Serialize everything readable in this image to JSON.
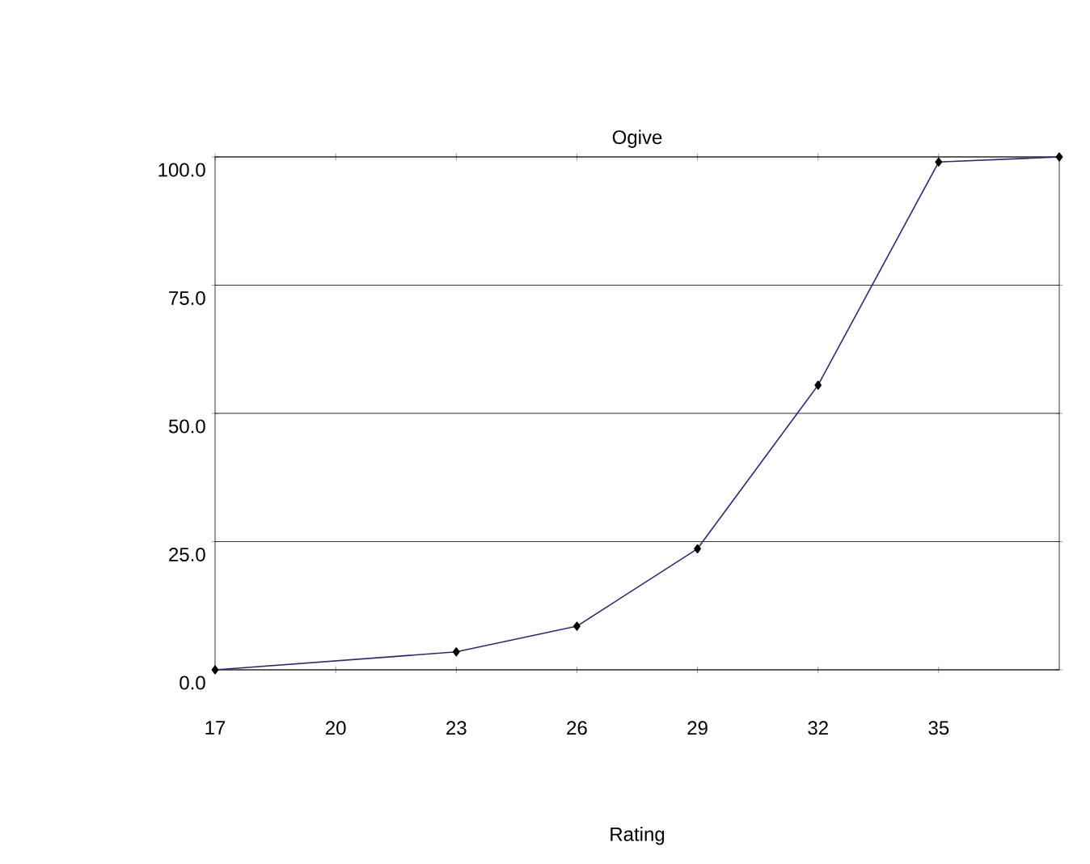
{
  "chart_data": {
    "type": "line",
    "title": "Ogive",
    "xlabel": "Rating",
    "x": [
      17,
      23,
      26,
      29,
      32,
      35,
      38
    ],
    "values": [
      0,
      3.5,
      8.5,
      23.6,
      55.5,
      99,
      100
    ],
    "color": "#2b2b6b",
    "marker": "diamond",
    "line_style": "solid",
    "grid": "y",
    "xlim": [
      17,
      38
    ],
    "xticks": [
      17,
      20,
      23,
      26,
      29,
      32,
      35
    ],
    "ylim": [
      0,
      100
    ],
    "yticks": [
      {
        "value": 0,
        "label": "0.0"
      },
      {
        "value": 25,
        "label": "25.0"
      },
      {
        "value": 50,
        "label": "50.0"
      },
      {
        "value": 75,
        "label": "75.0"
      },
      {
        "value": 100,
        "label": "100.0"
      }
    ]
  }
}
